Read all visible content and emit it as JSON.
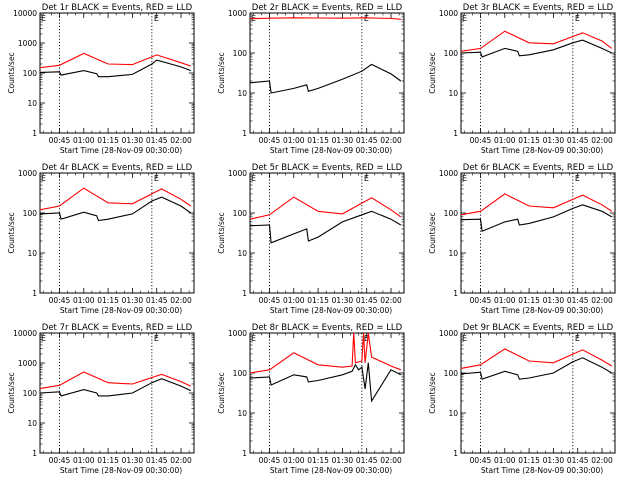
{
  "chart_data": [
    {
      "type": "line",
      "title": "Det 1r BLACK = Events, RED = LLD",
      "ylabel": "Counts/sec",
      "xlabel": "Start Time (28-Nov-09 00:30:00)",
      "y_scale": "log",
      "ylim": [
        1,
        10000
      ],
      "xlim": [
        "00:33",
        "02:08"
      ],
      "x_ticks": [
        "00:45",
        "01:00",
        "01:15",
        "01:30",
        "01:45",
        "02:00"
      ],
      "y_ticks": [
        "1",
        "10",
        "100",
        "1000",
        "10000"
      ],
      "markers": [
        "00:45",
        "01:42"
      ],
      "marker_label": "E",
      "series": [
        {
          "name": "BLACK",
          "color": "#000000",
          "x": [
            "00:33",
            "00:45",
            "00:46",
            "01:00",
            "01:08",
            "01:09",
            "01:15",
            "01:30",
            "01:42",
            "01:45",
            "02:00",
            "02:06"
          ],
          "values": [
            105,
            110,
            85,
            120,
            95,
            75,
            75,
            90,
            200,
            270,
            160,
            120
          ]
        },
        {
          "name": "RED",
          "color": "#ff0000",
          "x": [
            "00:33",
            "00:45",
            "01:00",
            "01:15",
            "01:30",
            "01:45",
            "02:00",
            "02:06"
          ],
          "values": [
            150,
            180,
            450,
            200,
            190,
            400,
            220,
            170
          ]
        }
      ]
    },
    {
      "type": "line",
      "title": "Det 2r BLACK = Events, RED = LLD",
      "ylabel": "Counts/sec",
      "xlabel": "Start Time (28-Nov-09 00:30:00)",
      "y_scale": "log",
      "ylim": [
        1,
        1000
      ],
      "xlim": [
        "00:33",
        "02:08"
      ],
      "x_ticks": [
        "00:45",
        "01:00",
        "01:15",
        "01:30",
        "01:45",
        "02:00"
      ],
      "y_ticks": [
        "1",
        "10",
        "100",
        "1000"
      ],
      "markers": [
        "00:45",
        "01:42"
      ],
      "marker_label": "E",
      "series": [
        {
          "name": "BLACK",
          "color": "#000000",
          "x": [
            "00:33",
            "00:45",
            "00:46",
            "01:00",
            "01:08",
            "01:09",
            "01:15",
            "01:30",
            "01:42",
            "01:48",
            "02:00",
            "02:06"
          ],
          "values": [
            18,
            20,
            10,
            13,
            16,
            11,
            13,
            22,
            35,
            52,
            30,
            20
          ]
        },
        {
          "name": "RED",
          "color": "#ff0000",
          "x": [
            "00:33",
            "00:45",
            "01:00",
            "01:15",
            "01:30",
            "01:45",
            "02:00",
            "02:06"
          ],
          "values": [
            720,
            740,
            760,
            750,
            740,
            760,
            730,
            700
          ]
        }
      ]
    },
    {
      "type": "line",
      "title": "Det 3r BLACK = Events, RED = LLD",
      "ylabel": "Counts/sec",
      "xlabel": "Start Time (28-Nov-09 00:30:00)",
      "y_scale": "log",
      "ylim": [
        1,
        1000
      ],
      "xlim": [
        "00:33",
        "02:08"
      ],
      "x_ticks": [
        "00:45",
        "01:00",
        "01:15",
        "01:30",
        "01:45",
        "02:00"
      ],
      "y_ticks": [
        "1",
        "10",
        "100",
        "1000"
      ],
      "markers": [
        "00:45",
        "01:42"
      ],
      "marker_label": "E",
      "series": [
        {
          "name": "BLACK",
          "color": "#000000",
          "x": [
            "00:33",
            "00:45",
            "00:46",
            "01:00",
            "01:08",
            "01:09",
            "01:15",
            "01:30",
            "01:42",
            "01:48",
            "02:00",
            "02:06"
          ],
          "values": [
            100,
            105,
            80,
            130,
            110,
            85,
            90,
            120,
            180,
            210,
            130,
            100
          ]
        },
        {
          "name": "RED",
          "color": "#ff0000",
          "x": [
            "00:33",
            "00:45",
            "01:00",
            "01:15",
            "01:30",
            "01:48",
            "02:00",
            "02:06"
          ],
          "values": [
            110,
            130,
            350,
            180,
            170,
            320,
            200,
            130
          ]
        }
      ]
    },
    {
      "type": "line",
      "title": "Det 4r BLACK = Events, RED = LLD",
      "ylabel": "Counts/sec",
      "xlabel": "Start Time (28-Nov-09 00:30:00)",
      "y_scale": "log",
      "ylim": [
        1,
        1000
      ],
      "xlim": [
        "00:33",
        "02:08"
      ],
      "x_ticks": [
        "00:45",
        "01:00",
        "01:15",
        "01:30",
        "01:45",
        "02:00"
      ],
      "y_ticks": [
        "1",
        "10",
        "100",
        "1000"
      ],
      "markers": [
        "00:45",
        "01:42"
      ],
      "marker_label": "E",
      "series": [
        {
          "name": "BLACK",
          "color": "#000000",
          "x": [
            "00:33",
            "00:45",
            "00:46",
            "01:00",
            "01:08",
            "01:09",
            "01:15",
            "01:30",
            "01:42",
            "01:48",
            "02:00",
            "02:06"
          ],
          "values": [
            95,
            100,
            70,
            105,
            85,
            65,
            70,
            95,
            200,
            250,
            150,
            100
          ]
        },
        {
          "name": "RED",
          "color": "#ff0000",
          "x": [
            "00:33",
            "00:45",
            "01:00",
            "01:15",
            "01:30",
            "01:48",
            "02:00",
            "02:06"
          ],
          "values": [
            120,
            150,
            420,
            180,
            170,
            400,
            220,
            150
          ]
        }
      ]
    },
    {
      "type": "line",
      "title": "Det 5r BLACK = Events, RED = LLD",
      "ylabel": "Counts/sec",
      "xlabel": "Start Time (28-Nov-09 00:30:00)",
      "y_scale": "log",
      "ylim": [
        1,
        1000
      ],
      "xlim": [
        "00:33",
        "02:08"
      ],
      "x_ticks": [
        "00:45",
        "01:00",
        "01:15",
        "01:30",
        "01:45",
        "02:00"
      ],
      "y_ticks": [
        "1",
        "10",
        "100",
        "1000"
      ],
      "markers": [
        "00:45",
        "01:42"
      ],
      "marker_label": "E",
      "series": [
        {
          "name": "BLACK",
          "color": "#000000",
          "x": [
            "00:33",
            "00:45",
            "00:46",
            "01:00",
            "01:08",
            "01:09",
            "01:15",
            "01:30",
            "01:42",
            "01:48",
            "02:00",
            "02:06"
          ],
          "values": [
            48,
            50,
            18,
            30,
            40,
            20,
            25,
            60,
            90,
            110,
            70,
            50
          ]
        },
        {
          "name": "RED",
          "color": "#ff0000",
          "x": [
            "00:33",
            "00:45",
            "01:00",
            "01:15",
            "01:30",
            "01:48",
            "02:00",
            "02:06"
          ],
          "values": [
            70,
            90,
            250,
            110,
            95,
            240,
            120,
            80
          ]
        }
      ]
    },
    {
      "type": "line",
      "title": "Det 6r BLACK = Events, RED = LLD",
      "ylabel": "Counts/sec",
      "xlabel": "Start Time (28-Nov-09 00:30:00)",
      "y_scale": "log",
      "ylim": [
        1,
        1000
      ],
      "xlim": [
        "00:33",
        "02:08"
      ],
      "x_ticks": [
        "00:45",
        "01:00",
        "01:15",
        "01:30",
        "01:45",
        "02:00"
      ],
      "y_ticks": [
        "1",
        "10",
        "100",
        "1000"
      ],
      "markers": [
        "00:45",
        "01:42"
      ],
      "marker_label": "E",
      "series": [
        {
          "name": "BLACK",
          "color": "#000000",
          "x": [
            "00:33",
            "00:45",
            "00:46",
            "01:00",
            "01:08",
            "01:09",
            "01:15",
            "01:30",
            "01:42",
            "01:48",
            "02:00",
            "02:06"
          ],
          "values": [
            68,
            70,
            35,
            60,
            70,
            50,
            55,
            80,
            130,
            160,
            110,
            80
          ]
        },
        {
          "name": "RED",
          "color": "#ff0000",
          "x": [
            "00:33",
            "00:45",
            "01:00",
            "01:15",
            "01:30",
            "01:48",
            "02:00",
            "02:06"
          ],
          "values": [
            90,
            110,
            300,
            150,
            135,
            280,
            160,
            110
          ]
        }
      ]
    },
    {
      "type": "line",
      "title": "Det 7r BLACK = Events, RED = LLD",
      "ylabel": "Counts/sec",
      "xlabel": "Start Time (28-Nov-09 00:30:00)",
      "y_scale": "log",
      "ylim": [
        1,
        10000
      ],
      "xlim": [
        "00:33",
        "02:08"
      ],
      "x_ticks": [
        "00:45",
        "01:00",
        "01:15",
        "01:30",
        "01:45",
        "02:00"
      ],
      "y_ticks": [
        "1",
        "10",
        "100",
        "1000",
        "10000"
      ],
      "markers": [
        "00:45",
        "01:42"
      ],
      "marker_label": "E",
      "series": [
        {
          "name": "BLACK",
          "color": "#000000",
          "x": [
            "00:33",
            "00:45",
            "00:46",
            "01:00",
            "01:08",
            "01:09",
            "01:15",
            "01:30",
            "01:42",
            "01:48",
            "02:00",
            "02:06"
          ],
          "values": [
            100,
            110,
            80,
            130,
            100,
            80,
            80,
            100,
            220,
            300,
            170,
            120
          ]
        },
        {
          "name": "RED",
          "color": "#ff0000",
          "x": [
            "00:33",
            "00:45",
            "01:00",
            "01:15",
            "01:30",
            "01:48",
            "02:00",
            "02:06"
          ],
          "values": [
            140,
            180,
            500,
            220,
            200,
            420,
            240,
            170
          ]
        }
      ]
    },
    {
      "type": "line",
      "title": "Det 8r BLACK = Events, RED = LLD",
      "ylabel": "Counts/sec",
      "xlabel": "Start Time (28-Nov-09 00:30:00)",
      "y_scale": "log",
      "ylim": [
        1,
        1000
      ],
      "xlim": [
        "00:33",
        "02:08"
      ],
      "x_ticks": [
        "00:45",
        "01:00",
        "01:15",
        "01:30",
        "01:45",
        "02:00"
      ],
      "y_ticks": [
        "1",
        "10",
        "100",
        "1000"
      ],
      "markers": [
        "00:45",
        "01:42"
      ],
      "marker_label": "E",
      "series": [
        {
          "name": "BLACK",
          "color": "#000000",
          "x": [
            "00:33",
            "00:45",
            "00:46",
            "01:00",
            "01:08",
            "01:09",
            "01:15",
            "01:30",
            "01:36",
            "01:38",
            "01:40",
            "01:42",
            "01:44",
            "01:46",
            "01:48",
            "02:00",
            "02:06"
          ],
          "values": [
            75,
            80,
            50,
            90,
            80,
            60,
            65,
            90,
            110,
            160,
            120,
            140,
            40,
            180,
            20,
            120,
            90
          ]
        },
        {
          "name": "RED",
          "color": "#ff0000",
          "x": [
            "00:33",
            "00:45",
            "01:00",
            "01:15",
            "01:30",
            "01:36",
            "01:37",
            "01:38",
            "01:42",
            "01:43",
            "01:44",
            "01:46",
            "01:48",
            "02:00",
            "02:06"
          ],
          "values": [
            100,
            120,
            320,
            160,
            140,
            150,
            1000,
            180,
            200,
            1000,
            180,
            1000,
            250,
            150,
            120
          ]
        }
      ]
    },
    {
      "type": "line",
      "title": "Det 9r BLACK = Events, RED = LLD",
      "ylabel": "Counts/sec",
      "xlabel": "Start Time (28-Nov-09 00:30:00)",
      "y_scale": "log",
      "ylim": [
        1,
        1000
      ],
      "xlim": [
        "00:33",
        "02:08"
      ],
      "x_ticks": [
        "00:45",
        "01:00",
        "01:15",
        "01:30",
        "01:45",
        "02:00"
      ],
      "y_ticks": [
        "1",
        "10",
        "100",
        "1000"
      ],
      "markers": [
        "00:45",
        "01:42"
      ],
      "marker_label": "E",
      "series": [
        {
          "name": "BLACK",
          "color": "#000000",
          "x": [
            "00:33",
            "00:45",
            "00:46",
            "01:00",
            "01:08",
            "01:09",
            "01:15",
            "01:30",
            "01:42",
            "01:48",
            "02:00",
            "02:06"
          ],
          "values": [
            95,
            105,
            70,
            110,
            90,
            70,
            75,
            100,
            190,
            240,
            140,
            100
          ]
        },
        {
          "name": "RED",
          "color": "#ff0000",
          "x": [
            "00:33",
            "00:45",
            "01:00",
            "01:15",
            "01:30",
            "01:48",
            "02:00",
            "02:06"
          ],
          "values": [
            130,
            160,
            400,
            200,
            180,
            380,
            210,
            150
          ]
        }
      ]
    }
  ]
}
